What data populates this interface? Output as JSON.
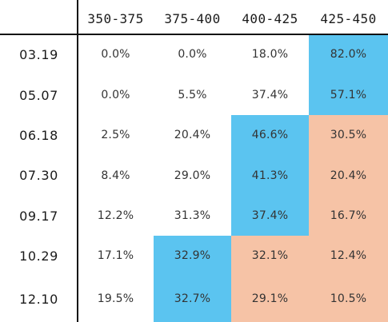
{
  "table": {
    "columns": [
      "",
      "350-375",
      "375-400",
      "400-425",
      "425-450"
    ],
    "rows": [
      {
        "label": "03.19",
        "values": [
          "0.0%",
          "0.0%",
          "18.0%",
          "82.0%"
        ],
        "highlight": [
          "none",
          "none",
          "none",
          "blue"
        ]
      },
      {
        "label": "05.07",
        "values": [
          "0.0%",
          "5.5%",
          "37.4%",
          "57.1%"
        ],
        "highlight": [
          "none",
          "none",
          "none",
          "blue"
        ]
      },
      {
        "label": "06.18",
        "values": [
          "2.5%",
          "20.4%",
          "46.6%",
          "30.5%"
        ],
        "highlight": [
          "none",
          "none",
          "blue",
          "peach"
        ]
      },
      {
        "label": "07.30",
        "values": [
          "8.4%",
          "29.0%",
          "41.3%",
          "20.4%"
        ],
        "highlight": [
          "none",
          "none",
          "blue",
          "peach"
        ]
      },
      {
        "label": "09.17",
        "values": [
          "12.2%",
          "31.3%",
          "37.4%",
          "16.7%"
        ],
        "highlight": [
          "none",
          "none",
          "blue",
          "peach"
        ]
      },
      {
        "label": "10.29",
        "values": [
          "17.1%",
          "32.9%",
          "32.1%",
          "12.4%"
        ],
        "highlight": [
          "none",
          "blue",
          "peach",
          "peach"
        ]
      },
      {
        "label": "12.10",
        "values": [
          "19.5%",
          "32.7%",
          "29.1%",
          "10.5%"
        ],
        "highlight": [
          "none",
          "blue",
          "peach",
          "peach"
        ]
      }
    ]
  },
  "colors": {
    "blue": "#5bc4f0",
    "peach": "#f6c3a6"
  }
}
